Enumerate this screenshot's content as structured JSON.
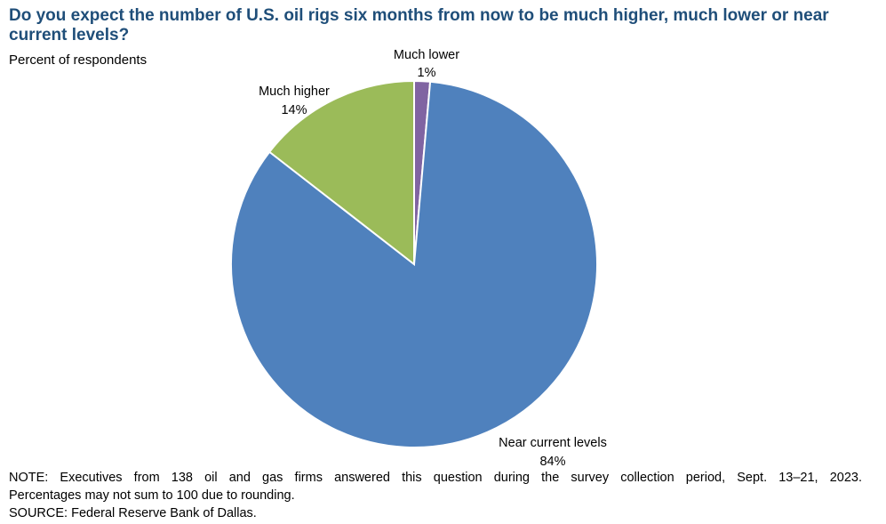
{
  "title": "Do you expect the number of U.S. oil rigs six months from now to be much higher, much lower or near current levels?",
  "subtitle": "Percent of respondents",
  "note_lines": [
    "NOTE:  Executives  from  138  oil  and  gas  firms  answered  this  question  during  the  survey  collection  period,  Sept.  13–21,  2023.",
    "Percentages  may  not  sum  to  100  due  to  rounding.",
    "SOURCE:  Federal  Reserve  Bank  of  Dallas."
  ],
  "chart_data": {
    "type": "pie",
    "title": "Do you expect the number of U.S. oil rigs six months from now to be much higher, much lower or near current levels?",
    "subtitle": "Percent of respondents",
    "start_angle_deg": 0,
    "direction": "clockwise",
    "slices": [
      {
        "label": "Much lower",
        "value": 1.4,
        "display": "1%",
        "color": "#8064a2"
      },
      {
        "label": "Near current levels",
        "value": 84.1,
        "display": "84%",
        "color": "#4f81bd"
      },
      {
        "label": "Much higher",
        "value": 14.5,
        "display": "14%",
        "color": "#9bbb59"
      }
    ]
  }
}
